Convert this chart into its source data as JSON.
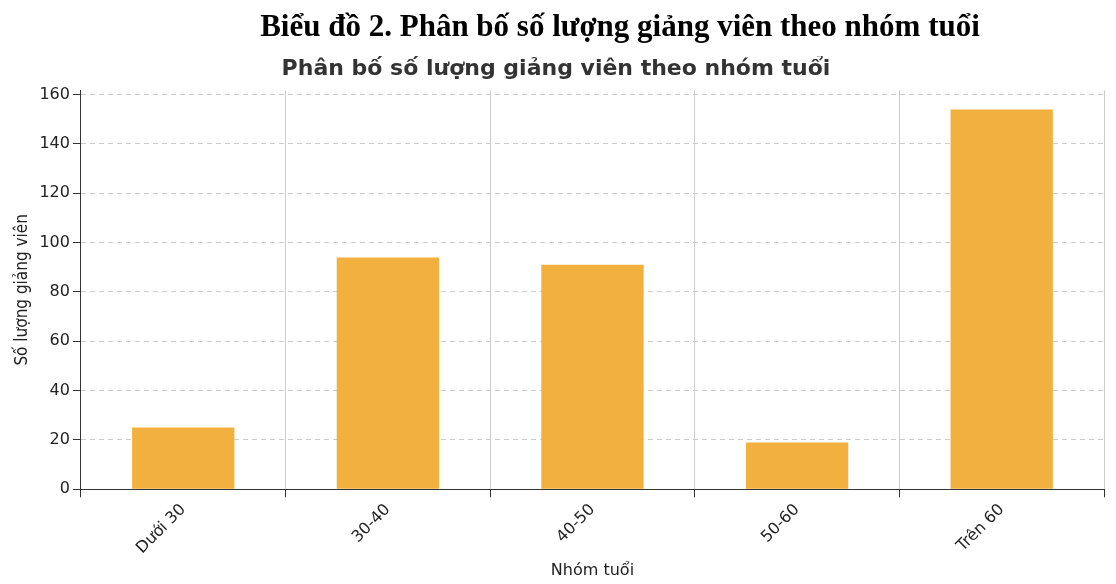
{
  "chart_data": {
    "type": "bar",
    "title": "Biểu đồ 2. Phân bố số lượng giảng viên theo nhóm tuổi",
    "subtitle": "Phân bố số lượng giảng viên theo nhóm tuổi",
    "xlabel": "Nhóm tuổi",
    "ylabel": "Số lượng giảng viên",
    "categories": [
      "Dưới 30",
      "30-40",
      "40-50",
      "50-60",
      "Trên 60"
    ],
    "values": [
      25,
      94,
      91,
      19,
      154
    ],
    "color": "#f2b13e",
    "ylim": [
      0,
      161.7
    ],
    "yticks": [
      0,
      20,
      40,
      60,
      80,
      100,
      120,
      140,
      160
    ],
    "grid": true,
    "line_style": "dashed"
  }
}
